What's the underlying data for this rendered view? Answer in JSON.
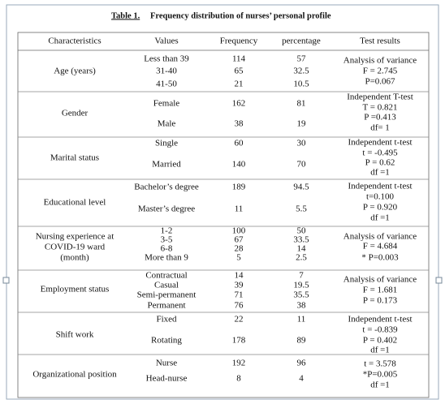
{
  "title": {
    "label": "Table 1.",
    "text": "Frequency distribution of nurses’ personal profile"
  },
  "table": {
    "header": [
      "Characteristics",
      "Values",
      "Frequency",
      "percentage",
      "Test results"
    ],
    "groups": [
      {
        "characteristic": [
          "Age (years)"
        ],
        "rows": [
          [
            "Less than 39",
            114,
            57
          ],
          [
            "31-40",
            65,
            32.5
          ],
          [
            "41-50",
            21,
            10.5
          ]
        ],
        "test": [
          "Analysis of variance",
          "F = 2.745",
          "P=0.067"
        ]
      },
      {
        "characteristic": [
          "Gender"
        ],
        "rows": [
          [
            "Female",
            162,
            81
          ],
          [
            "Male",
            38,
            19
          ]
        ],
        "test": [
          "Independent T-test",
          "T = 0.821",
          "P =0.413",
          "df= 1"
        ]
      },
      {
        "characteristic": [
          "Marital status"
        ],
        "rows": [
          [
            "Single",
            60,
            30
          ],
          [
            "Married",
            140,
            70
          ]
        ],
        "test": [
          "Independent t-test",
          "t = -0.495",
          "P = 0.62",
          "df =1"
        ]
      },
      {
        "characteristic": [
          "Educational level"
        ],
        "rows": [
          [
            "Bachelor’s degree",
            189,
            94.5
          ],
          [
            "Master’s degree",
            11,
            5.5
          ]
        ],
        "test": [
          "Independent t-test",
          "t=0.100",
          "P = 0.920",
          "df =1"
        ]
      },
      {
        "characteristic": [
          "Nursing experience at",
          "COVID-19 ward",
          "(month)"
        ],
        "rows": [
          [
            "1-2",
            100,
            50
          ],
          [
            "3-5",
            67,
            33.5
          ],
          [
            "6-8",
            28,
            14
          ],
          [
            "More than 9",
            5,
            2.5
          ]
        ],
        "test": [
          "Analysis of variance",
          "F = 4.684",
          "* P=0.003"
        ]
      },
      {
        "characteristic": [
          "Employment status"
        ],
        "rows": [
          [
            "Contractual",
            14,
            7
          ],
          [
            "Casual",
            39,
            19.5
          ],
          [
            "Semi-permanent",
            71,
            35.5
          ],
          [
            "Permanent",
            76,
            38
          ]
        ],
        "test": [
          "Analysis of variance",
          "F = 1.681",
          "P = 0.173"
        ]
      },
      {
        "characteristic": [
          "Shift work"
        ],
        "rows": [
          [
            "Fixed",
            22,
            11
          ],
          [
            "Rotating",
            178,
            89
          ]
        ],
        "test": [
          "Independent t-test",
          "t = -0.839",
          "P = 0.402",
          "df =1"
        ]
      },
      {
        "characteristic": [
          "Organizational position"
        ],
        "rows": [
          [
            "Nurse",
            192,
            96
          ],
          [
            "Head-nurse",
            8,
            4
          ]
        ],
        "test": [
          "t = 3.578",
          "*P=0.005",
          "df =1"
        ]
      }
    ]
  }
}
